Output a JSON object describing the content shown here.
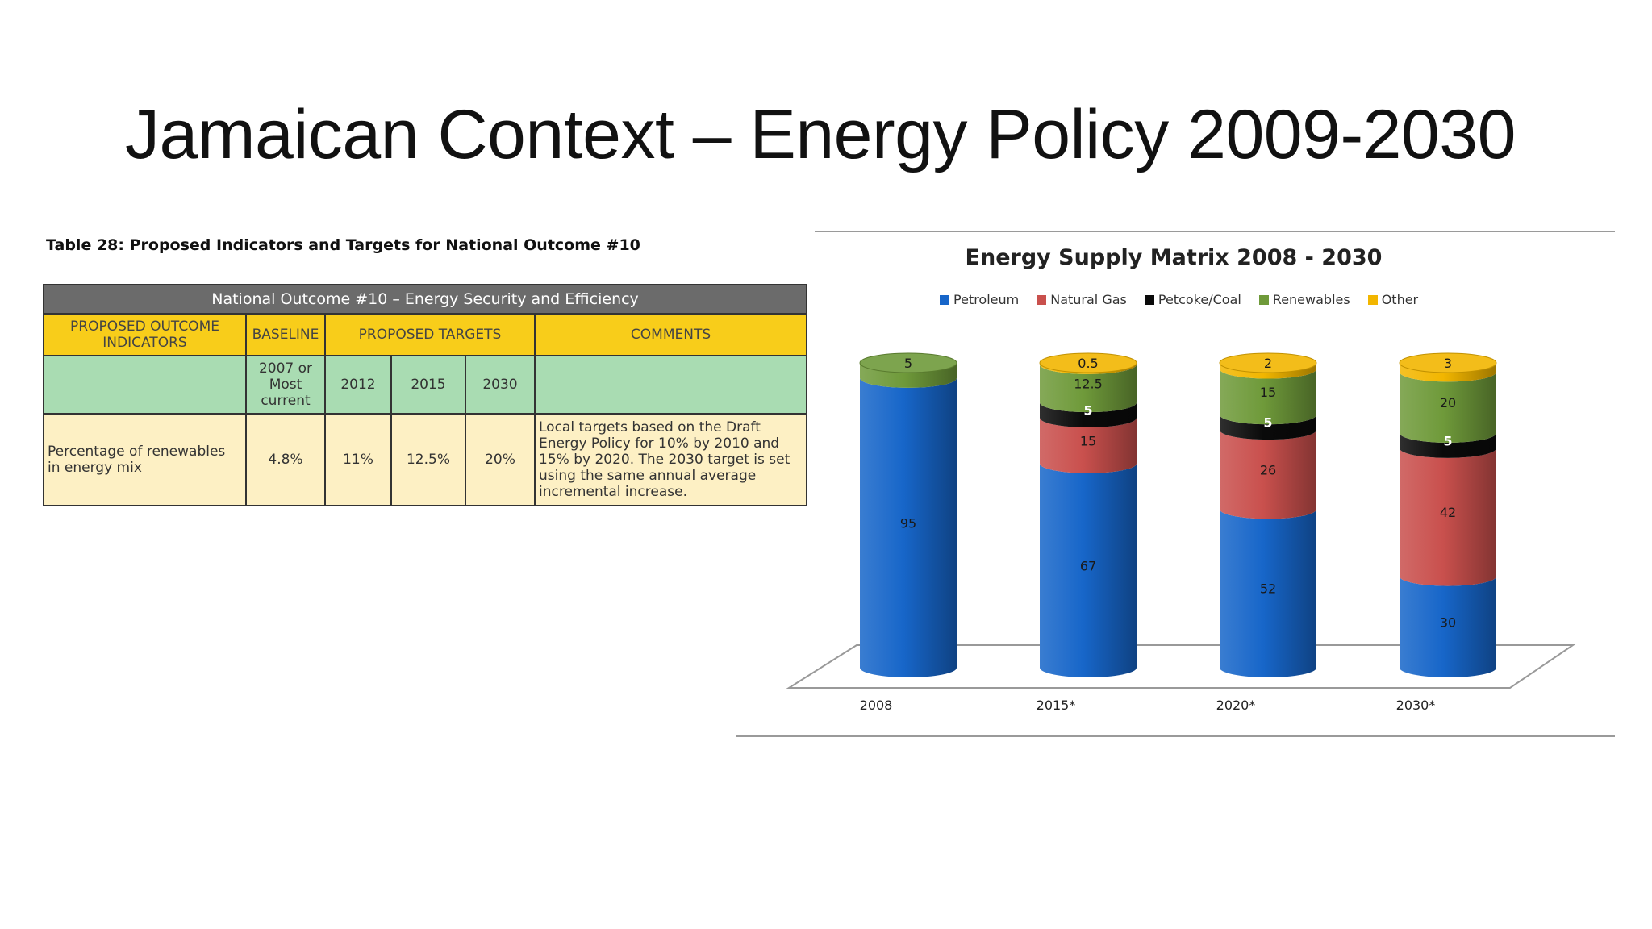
{
  "slide": {
    "title": "Jamaican Context – Energy Policy 2009-2030"
  },
  "table": {
    "caption": "Table 28: Proposed Indicators and Targets for National Outcome #10",
    "header": "National Outcome #10 – Energy Security and Efficiency",
    "columns": {
      "indicators": "PROPOSED OUTCOME INDICATORS",
      "baseline": "BASELINE",
      "targets": "PROPOSED TARGETS",
      "comments": "COMMENTS"
    },
    "subheaders": {
      "baseline": "2007 or Most current",
      "t2012": "2012",
      "t2015": "2015",
      "t2030": "2030"
    },
    "row": {
      "indicator": "Percentage of renewables in energy mix",
      "baseline": "4.8%",
      "t2012": "11%",
      "t2015": "12.5%",
      "t2030": "20%",
      "comment": "Local targets based on the Draft Energy Policy for 10% by 2010 and 15% by 2020. The 2030 target is set using the same annual average incremental increase."
    }
  },
  "colors": {
    "petroleum": "#1766c9",
    "natural_gas": "#c9504d",
    "petcoke_coal": "#0a0a0a",
    "renewables": "#6f9a3a",
    "other": "#f2b600"
  },
  "chart_data": {
    "type": "bar",
    "stacked": true,
    "style": "3d-cylinder",
    "title": "Energy Supply Matrix 2008 - 2030",
    "legend_position": "top",
    "categories": [
      "2008",
      "2015*",
      "2020*",
      "2030*"
    ],
    "series": [
      {
        "name": "Petroleum",
        "color": "#1766c9",
        "values": [
          95,
          67,
          52,
          30
        ]
      },
      {
        "name": "Natural Gas",
        "color": "#c9504d",
        "values": [
          0,
          15,
          26,
          42
        ]
      },
      {
        "name": "Petcoke/Coal",
        "color": "#0a0a0a",
        "values": [
          0,
          5,
          5,
          5
        ]
      },
      {
        "name": "Renewables",
        "color": "#6f9a3a",
        "values": [
          5,
          12.5,
          15,
          20
        ]
      },
      {
        "name": "Other",
        "color": "#f2b600",
        "values": [
          0,
          0.5,
          2,
          3
        ]
      }
    ],
    "data_labels": [
      [
        "95",
        "",
        "",
        "5",
        ""
      ],
      [
        "67",
        "15",
        "5",
        "12.5",
        "0.5"
      ],
      [
        "52",
        "26",
        "5",
        "15",
        "2"
      ],
      [
        "30",
        "42",
        "5",
        "20",
        "3"
      ]
    ],
    "ylim": [
      0,
      100
    ],
    "grid": false
  }
}
